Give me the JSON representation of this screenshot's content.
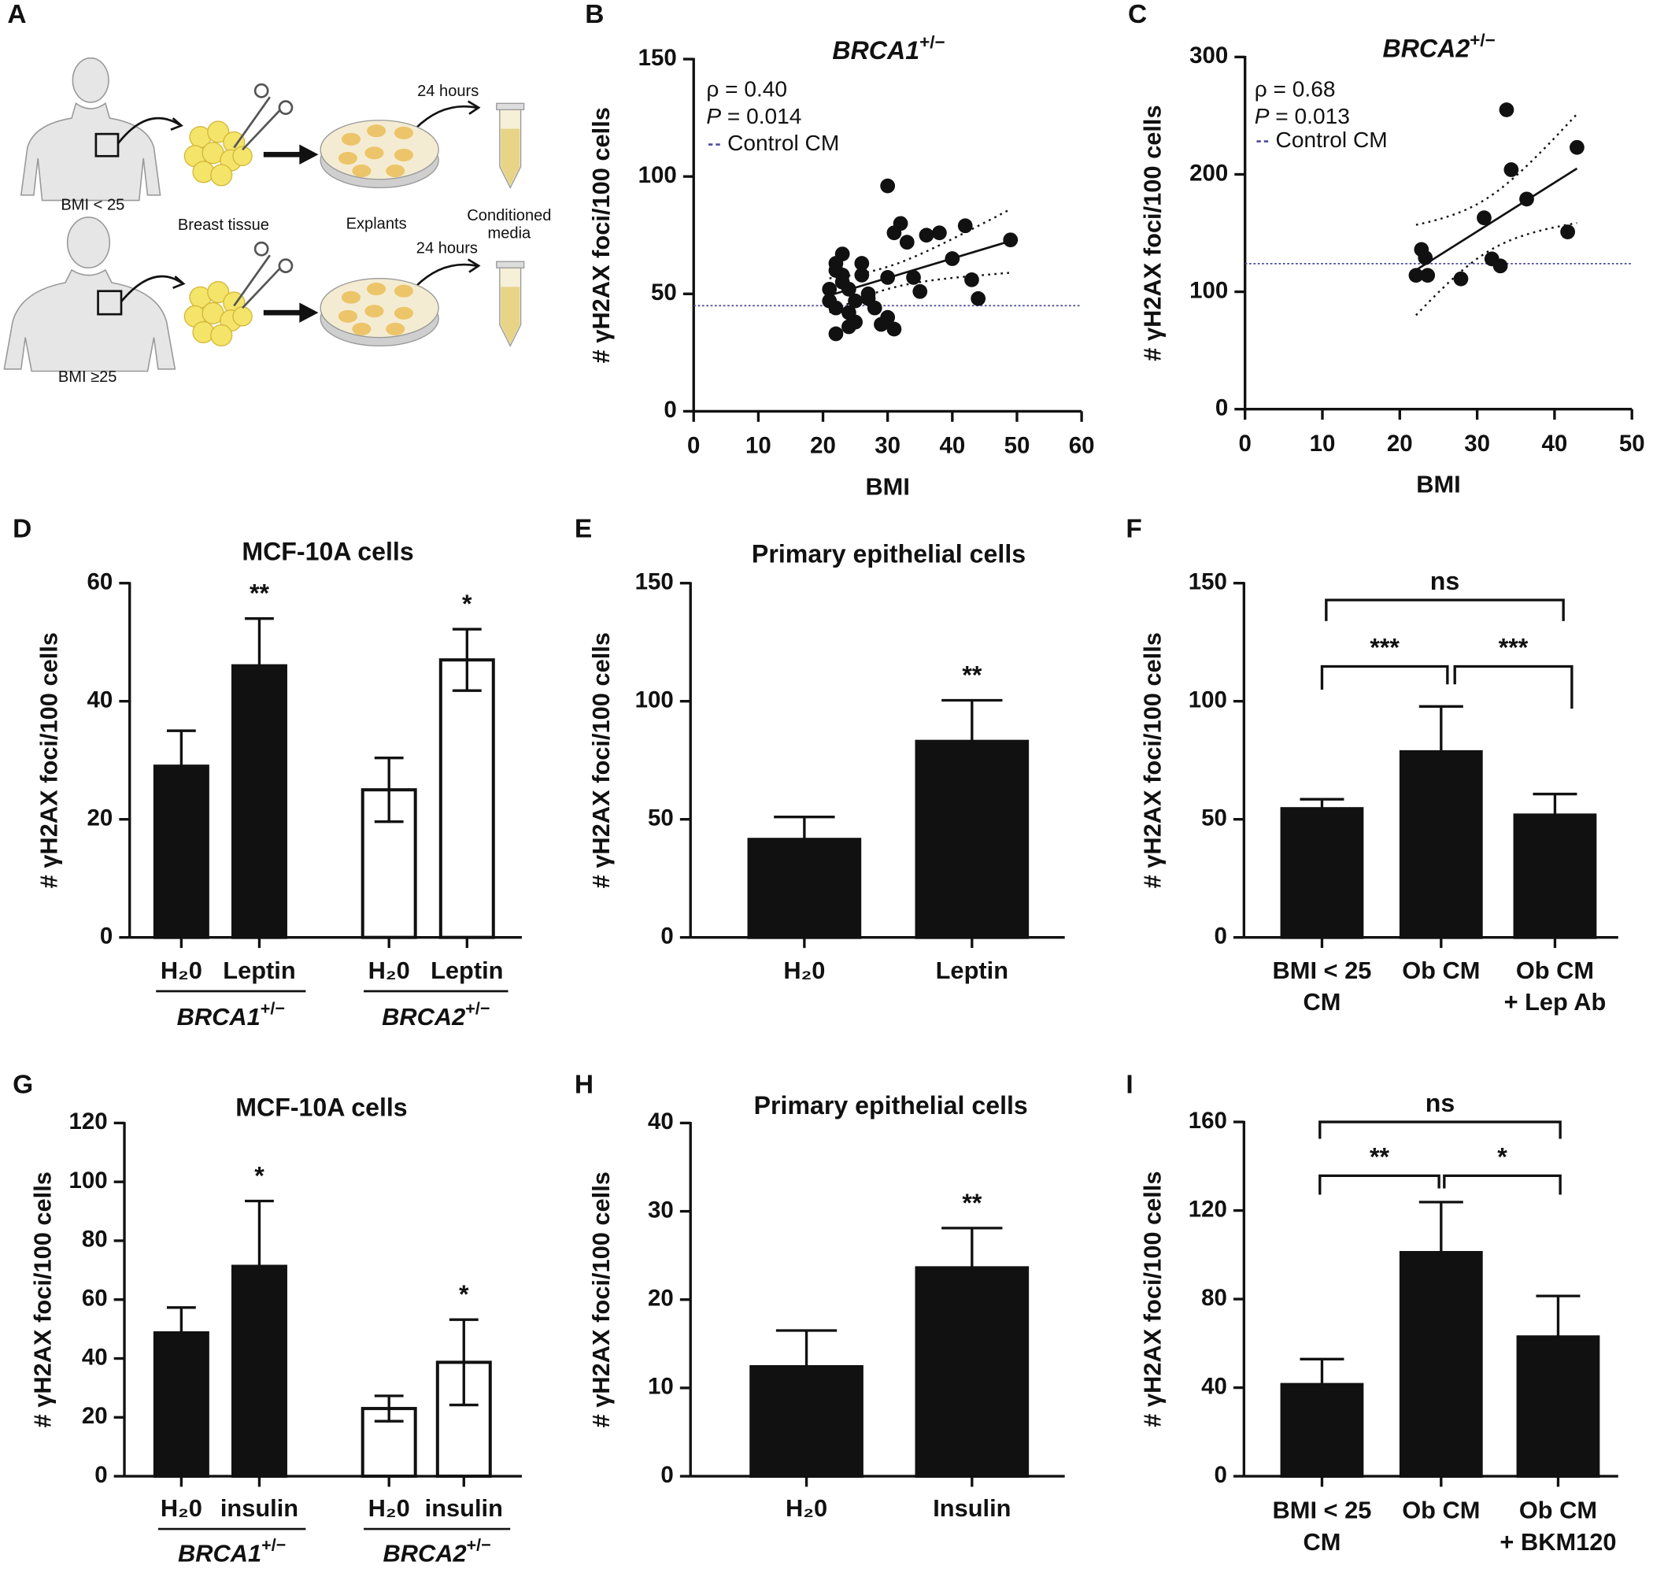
{
  "diagram": {
    "panel": "A",
    "labels": {
      "time_top": "24 hours",
      "bmi_low": "BMI < 25",
      "tissue": "Breast tissue",
      "explants": "Explants",
      "media_1": "Conditioned",
      "media_2": "media",
      "time_bottom": "24 hours",
      "bmi_high": "BMI ≥25"
    }
  },
  "chart_data": [
    {
      "panel": "B",
      "type": "scatter",
      "title": {
        "gene": "BRCA1",
        "sup": "+/−"
      },
      "rho": "ρ = 0.40",
      "p_value": {
        "symbol": "P",
        "text": " = 0.014"
      },
      "reference": {
        "label": "Control CM",
        "value": 45,
        "color": "#4a4a9c"
      },
      "xlabel": "BMI",
      "ylabel": "# γH2AX foci/100 cells",
      "color": "#111111",
      "x": [
        21,
        22,
        23,
        22,
        21,
        22,
        23,
        24,
        25,
        24,
        25,
        22,
        24,
        23,
        26,
        27,
        27,
        29,
        30,
        31,
        30,
        31,
        32,
        33,
        34,
        35,
        36,
        38,
        40,
        42,
        43,
        44,
        49,
        26,
        28,
        30
      ],
      "values": [
        52,
        60,
        67,
        63,
        47,
        44,
        55,
        52,
        47,
        42,
        38,
        33,
        36,
        58,
        63,
        50,
        48,
        37,
        40,
        35,
        96,
        76,
        80,
        72,
        57,
        51,
        75,
        76,
        65,
        79,
        56,
        48,
        73,
        58,
        44,
        57
      ],
      "xlim": [
        0,
        60
      ],
      "xticks": [
        0,
        10,
        20,
        30,
        40,
        50,
        60
      ],
      "ylim": [
        0,
        150
      ],
      "yticks": [
        0,
        50,
        100,
        150
      ]
    },
    {
      "panel": "C",
      "type": "scatter",
      "title": {
        "gene": "BRCA2",
        "sup": "+/−"
      },
      "rho": "ρ = 0.68",
      "p_value": {
        "symbol": "P",
        "text": " = 0.013"
      },
      "reference": {
        "label": "Control CM",
        "value": 124,
        "color": "#4a4a9c"
      },
      "xlabel": "BMI",
      "ylabel": "# γH2AX foci/100 cells",
      "color": "#111111",
      "x": [
        22.1,
        22.8,
        23.3,
        23.6,
        27.9,
        30.9,
        31.9,
        33,
        33.8,
        34.4,
        36.4,
        41.7,
        42.9
      ],
      "values": [
        114,
        136,
        129,
        114,
        111,
        163,
        128,
        122,
        255,
        204,
        179,
        151,
        223
      ],
      "xlim": [
        0,
        50
      ],
      "xticks": [
        0,
        10,
        20,
        30,
        40,
        50
      ],
      "ylim": [
        0,
        300
      ],
      "yticks": [
        0,
        100,
        200,
        300
      ]
    },
    {
      "panel": "D",
      "type": "bar",
      "title": "MCF-10A cells",
      "ylabel": "# γH2AX foci/100 cells",
      "categories": [
        [
          "H₂0"
        ],
        [
          "Leptin"
        ],
        [
          "H₂0"
        ],
        [
          "Leptin"
        ]
      ],
      "groups": [
        {
          "gene": "BRCA1",
          "sup": "+/−"
        },
        {
          "gene": "BRCA2",
          "sup": "+/−"
        }
      ],
      "values": [
        29,
        46,
        25,
        47
      ],
      "errors": [
        6,
        8,
        5.4,
        5.2
      ],
      "significance": [
        null,
        "**",
        null,
        "*"
      ],
      "colors": [
        "#111111",
        "#111111",
        "#ffffff",
        "#ffffff"
      ],
      "ylim": [
        0,
        60
      ],
      "yticks": [
        0,
        20,
        40,
        60
      ]
    },
    {
      "panel": "E",
      "type": "bar",
      "title": "Primary epithelial cells",
      "ylabel": "# γH2AX foci/100 cells",
      "categories": [
        [
          "H₂0"
        ],
        [
          "Leptin"
        ]
      ],
      "values": [
        41.5,
        83
      ],
      "errors": [
        9.5,
        17.4
      ],
      "significance": [
        null,
        "**"
      ],
      "colors": [
        "#111111",
        "#111111"
      ],
      "ylim": [
        0,
        150
      ],
      "yticks": [
        0,
        50,
        100,
        150
      ]
    },
    {
      "panel": "F",
      "type": "bar",
      "ylabel": "# γH2AX foci/100 cells",
      "categories": [
        [
          "BMI < 25",
          "CM"
        ],
        [
          "Ob CM"
        ],
        [
          "Ob CM",
          "+ Lep Ab"
        ]
      ],
      "values": [
        54.5,
        78.6,
        51.8
      ],
      "errors": [
        4,
        19.2,
        8.9
      ],
      "comparisons": [
        "ns",
        "***",
        "***"
      ],
      "colors": [
        "#111111",
        "#111111",
        "#111111"
      ],
      "ylim": [
        0,
        150
      ],
      "yticks": [
        0,
        50,
        100,
        150
      ]
    },
    {
      "panel": "G",
      "type": "bar",
      "title": "MCF-10A cells",
      "ylabel": "# γH2AX foci/100 cells",
      "categories": [
        [
          "H₂0"
        ],
        [
          "insulin"
        ],
        [
          "H₂0"
        ],
        [
          "insulin"
        ]
      ],
      "groups": [
        {
          "gene": "BRCA1",
          "sup": "+/−"
        },
        {
          "gene": "BRCA2",
          "sup": "+/−"
        }
      ],
      "values": [
        48.7,
        71.3,
        23,
        38.7
      ],
      "errors": [
        8.6,
        22.2,
        4.3,
        14.5
      ],
      "significance": [
        null,
        "*",
        null,
        "*"
      ],
      "colors": [
        "#111111",
        "#111111",
        "#ffffff",
        "#ffffff"
      ],
      "ylim": [
        0,
        120
      ],
      "yticks": [
        0,
        20,
        40,
        60,
        80,
        100,
        120
      ]
    },
    {
      "panel": "H",
      "type": "bar",
      "title": "Primary epithelial cells",
      "ylabel": "# γH2AX foci/100 cells",
      "categories": [
        [
          "H₂0"
        ],
        [
          "Insulin"
        ]
      ],
      "values": [
        12.4,
        23.6
      ],
      "errors": [
        4.1,
        4.5
      ],
      "significance": [
        null,
        "**"
      ],
      "colors": [
        "#111111",
        "#111111"
      ],
      "ylim": [
        0,
        40
      ],
      "yticks": [
        0,
        10,
        20,
        30,
        40
      ]
    },
    {
      "panel": "I",
      "type": "bar",
      "ylabel": "# γH2AX foci/100 cells",
      "categories": [
        [
          "BMI < 25",
          "CM"
        ],
        [
          "Ob CM"
        ],
        [
          "Ob CM",
          "+ BKM120"
        ]
      ],
      "values": [
        41.4,
        101,
        62.9
      ],
      "errors": [
        11.5,
        22.8,
        18.5
      ],
      "comparisons": [
        "ns",
        "**",
        "*"
      ],
      "colors": [
        "#111111",
        "#111111",
        "#111111"
      ],
      "ylim": [
        0,
        160
      ],
      "yticks": [
        0,
        40,
        80,
        120,
        160
      ]
    }
  ]
}
